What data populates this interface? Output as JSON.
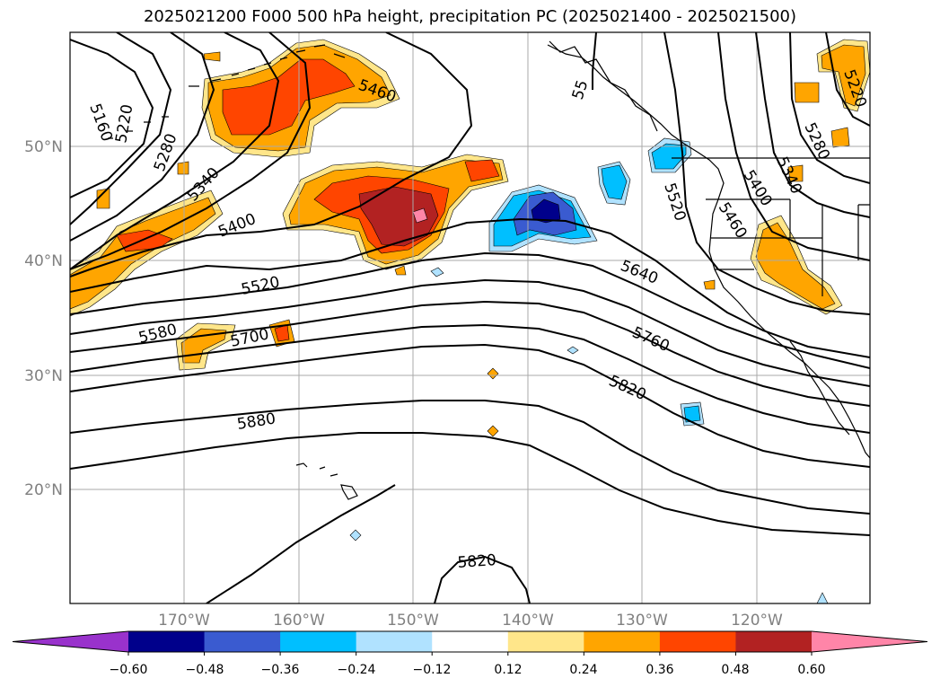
{
  "title": "2025021200 F000 500 hPa height, precipitation PC (2025021400 - 2025021500)",
  "map": {
    "lat_labels": [
      "50°N",
      "40°N",
      "30°N",
      "20°N"
    ],
    "lon_labels": [
      "170°W",
      "160°W",
      "150°W",
      "140°W",
      "130°W",
      "120°W"
    ],
    "gridlines": true,
    "coastlines": true
  },
  "contour_labels": [
    "5160",
    "5220",
    "5280",
    "5340",
    "5400",
    "5460",
    "5520",
    "5580",
    "5640",
    "5700",
    "5760",
    "5820",
    "5880",
    "5820",
    "5520",
    "5460",
    "5400",
    "5340",
    "5280",
    "5220",
    "55"
  ],
  "colorbar": {
    "extend": "both",
    "ticks": [
      "−0.60",
      "−0.48",
      "−0.36",
      "−0.24",
      "−0.12",
      "0.12",
      "0.24",
      "0.36",
      "0.48",
      "0.60"
    ],
    "colors": [
      "#9932cc",
      "#00008b",
      "#3a5bd0",
      "#00bfff",
      "#b0e2ff",
      "#ffffff",
      "#ffe68a",
      "#ffa500",
      "#ff4500",
      "#b22222",
      "#ff85a8"
    ]
  }
}
